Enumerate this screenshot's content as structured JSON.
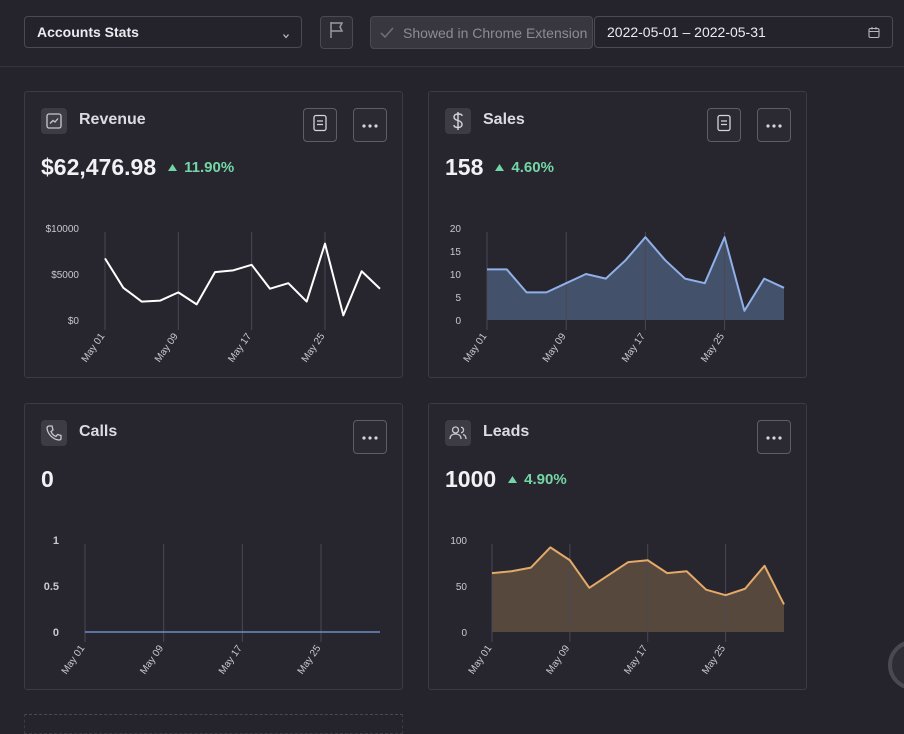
{
  "toolbar": {
    "select_value": "Accounts Stats",
    "chrome_extension_label": "Showed in Chrome Extension",
    "date_range": "2022-05-01 – 2022-05-31"
  },
  "cards": {
    "revenue": {
      "title": "Revenue",
      "value": "$62,476.98",
      "delta": "11.90%"
    },
    "sales": {
      "title": "Sales",
      "value": "158",
      "delta": "4.60%"
    },
    "calls": {
      "title": "Calls",
      "value": "0"
    },
    "leads": {
      "title": "Leads",
      "value": "1000",
      "delta": "4.90%"
    }
  },
  "colors": {
    "revenue_line": "#ffffff",
    "sales_line": "#8fb0e8",
    "sales_fill": "#46536e",
    "calls_line": "#6c8fc8",
    "leads_line": "#e3aa68",
    "leads_fill": "#5a4a3f",
    "delta_positive": "#74d6a6"
  },
  "chart_data": [
    {
      "id": "revenue",
      "type": "line",
      "x_ticks": [
        "May 01",
        "May 09",
        "May 17",
        "May 25"
      ],
      "y_ticks": [
        "$10000",
        "$5000",
        "$0"
      ],
      "ylim": [
        0,
        10000
      ],
      "values": [
        6700,
        3500,
        2000,
        2100,
        3000,
        1700,
        5200,
        5400,
        6000,
        3400,
        4000,
        2000,
        8300,
        500,
        5300,
        3400
      ]
    },
    {
      "id": "sales",
      "type": "area",
      "x_ticks": [
        "May 01",
        "May 09",
        "May 17",
        "May 25"
      ],
      "y_ticks": [
        "20",
        "15",
        "10",
        "5",
        "0"
      ],
      "ylim": [
        0,
        20
      ],
      "values": [
        11,
        11,
        6,
        6,
        8,
        10,
        9,
        13,
        18,
        13,
        9,
        8,
        18,
        2,
        9,
        7
      ]
    },
    {
      "id": "calls",
      "type": "line",
      "x_ticks": [
        "May 01",
        "May 09",
        "May 17",
        "May 25"
      ],
      "y_ticks": [
        "1",
        "0.5",
        "0"
      ],
      "ylim": [
        0,
        1
      ],
      "values": [
        0,
        0,
        0,
        0,
        0,
        0,
        0,
        0,
        0,
        0,
        0,
        0,
        0,
        0,
        0,
        0
      ]
    },
    {
      "id": "leads",
      "type": "area",
      "x_ticks": [
        "May 01",
        "May 09",
        "May 17",
        "May 25"
      ],
      "y_ticks": [
        "100",
        "50",
        "0"
      ],
      "ylim": [
        0,
        100
      ],
      "values": [
        64,
        66,
        70,
        92,
        78,
        48,
        62,
        76,
        78,
        64,
        66,
        46,
        40,
        47,
        72,
        30
      ]
    }
  ]
}
